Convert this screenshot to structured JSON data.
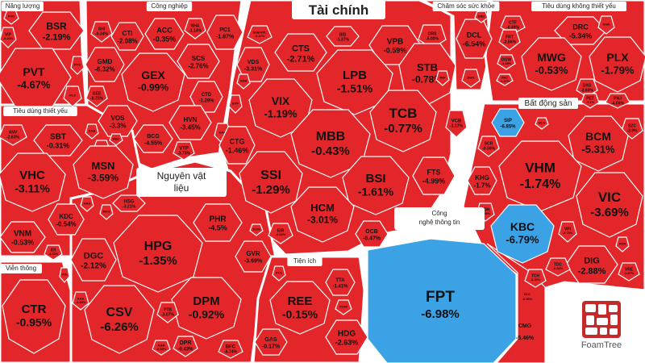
{
  "chart_data": {
    "type": "treemap",
    "title": "",
    "colors": {
      "down": "#e3262a",
      "floor": "#3ba2e6",
      "border": "#ffffff"
    },
    "groups": [
      {
        "name": "Năng lượng",
        "items": [
          {
            "ticker": "BSR",
            "change": "-2.19%"
          },
          {
            "ticker": "PVT",
            "change": "-4.67%"
          },
          {
            "ticker": "VIP",
            "change": "-0.20%"
          },
          {
            "ticker": "PLX",
            "change": ""
          },
          {
            "ticker": "PVD",
            "change": ""
          },
          {
            "ticker": "PVS",
            "change": ""
          }
        ]
      },
      {
        "name": "Công nghiệp",
        "items": [
          {
            "ticker": "SHI",
            "change": "-0.34%"
          },
          {
            "ticker": "CTI",
            "change": "-2.08%"
          },
          {
            "ticker": "ACC",
            "change": "-0.35%"
          },
          {
            "ticker": "NHA",
            "change": "-1.14%"
          },
          {
            "ticker": "PC1",
            "change": "-1.87%"
          },
          {
            "ticker": "GMD",
            "change": "-6.32%"
          },
          {
            "ticker": "GEX",
            "change": "-0.99%"
          },
          {
            "ticker": "SCS",
            "change": "-2.76%"
          },
          {
            "ticker": "GEE",
            "change": "-0.75%"
          },
          {
            "ticker": "CTD",
            "change": "-1.29%"
          },
          {
            "ticker": "VOS",
            "change": "-3.3%"
          },
          {
            "ticker": "HVN",
            "change": "-3.45%"
          },
          {
            "ticker": "BCG",
            "change": "-4.55%"
          },
          {
            "ticker": "VTP",
            "change": "-3.75%"
          },
          {
            "ticker": "HAH",
            "change": ""
          },
          {
            "ticker": "VSC",
            "change": ""
          }
        ]
      },
      {
        "name": "Tài chính",
        "items": [
          {
            "ticker": "SSB/VPL",
            "change": "-0.47%"
          },
          {
            "ticker": "BID",
            "change": "-1.37%"
          },
          {
            "ticker": "VDS",
            "change": "-3.31%"
          },
          {
            "ticker": "CTS",
            "change": "-2.71%"
          },
          {
            "ticker": "VPB",
            "change": "-0.59%"
          },
          {
            "ticker": "ORS",
            "change": "-5.00%"
          },
          {
            "ticker": "LPB",
            "change": "-1.51%"
          },
          {
            "ticker": "STB",
            "change": "-0.78%"
          },
          {
            "ticker": "VIX",
            "change": "-1.19%"
          },
          {
            "ticker": "EVF",
            "change": ""
          },
          {
            "ticker": "MBB",
            "change": "-0.43%"
          },
          {
            "ticker": "TCB",
            "change": "-0.77%"
          },
          {
            "ticker": "CTG",
            "change": "-1.46%"
          },
          {
            "ticker": "VCB",
            "change": "-1.17%"
          },
          {
            "ticker": "SSI",
            "change": "-1.29%"
          },
          {
            "ticker": "BSI",
            "change": "-1.61%"
          },
          {
            "ticker": "FTS",
            "change": "-4.99%"
          },
          {
            "ticker": "HCM",
            "change": "-3.01%"
          },
          {
            "ticker": "EIB",
            "change": "-0.62%"
          },
          {
            "ticker": "OCB",
            "change": "-0.47%"
          },
          {
            "ticker": "VIB",
            "change": "-1.03%"
          },
          {
            "ticker": "HDB",
            "change": ""
          }
        ]
      },
      {
        "name": "Chăm sóc sức khỏe",
        "items": [
          {
            "ticker": "DCL",
            "change": "-6.54%"
          },
          {
            "ticker": "DHG",
            "change": ""
          },
          {
            "ticker": "IMP",
            "change": ""
          },
          {
            "ticker": "DBD",
            "change": ""
          }
        ]
      },
      {
        "name": "Tiêu dùng không thiết yếu",
        "items": [
          {
            "ticker": "CTF",
            "change": "-0.49%"
          },
          {
            "ticker": "DRC",
            "change": "-5.34%"
          },
          {
            "ticker": "FRT",
            "change": "-2.86%"
          },
          {
            "ticker": "MWG",
            "change": "-0.53%"
          },
          {
            "ticker": "PLX",
            "change": "-1.79%"
          },
          {
            "ticker": "SGN",
            "change": ""
          },
          {
            "ticker": "DGW",
            "change": "-1.49%"
          },
          {
            "ticker": "DXG",
            "change": "-3.60%"
          },
          {
            "ticker": "PET",
            "change": "-3.1%"
          },
          {
            "ticker": "PNJ",
            "change": "-4.06%"
          },
          {
            "ticker": "PAC",
            "change": "-1.47%"
          }
        ]
      },
      {
        "name": "Tiêu dùng thiết yếu",
        "items": [
          {
            "ticker": "ANV",
            "change": "-2.63%"
          },
          {
            "ticker": "SBT",
            "change": "-0.31%"
          },
          {
            "ticker": "VHC",
            "change": "-3.11%"
          },
          {
            "ticker": "MSN",
            "change": "-3.59%"
          },
          {
            "ticker": "KDC",
            "change": "-0.54%"
          },
          {
            "ticker": "VNM",
            "change": "-0.53%"
          },
          {
            "ticker": "IDI",
            "change": "-3.33%"
          },
          {
            "ticker": "SAB",
            "change": ""
          },
          {
            "ticker": "DBC",
            "change": ""
          },
          {
            "ticker": "HAG",
            "change": ""
          }
        ]
      },
      {
        "name": "Nguyên vật liệu",
        "items": [
          {
            "ticker": "HSG",
            "change": "-3.21%"
          },
          {
            "ticker": "PHR",
            "change": "-4.5%"
          },
          {
            "ticker": "HPG",
            "change": "-1.35%"
          },
          {
            "ticker": "DGC",
            "change": "-2.12%"
          },
          {
            "ticker": "GVR",
            "change": "-3.69%"
          },
          {
            "ticker": "CSV",
            "change": "-6.26%"
          },
          {
            "ticker": "DPM",
            "change": "-0.92%"
          },
          {
            "ticker": "PTB",
            "change": "-3.07%"
          },
          {
            "ticker": "DPR",
            "change": "-0.43%"
          },
          {
            "ticker": "BFC",
            "change": "-6.74%"
          },
          {
            "ticker": "KSB",
            "change": "-6.60%"
          },
          {
            "ticker": "AAA",
            "change": "-4.83%"
          },
          {
            "ticker": "NKG",
            "change": ""
          },
          {
            "ticker": "DCM",
            "change": ""
          }
        ]
      },
      {
        "name": "Viễn thông",
        "items": [
          {
            "ticker": "CTR",
            "change": "-0.95%"
          },
          {
            "ticker": "VGI",
            "change": ""
          }
        ]
      },
      {
        "name": "Tiện ích",
        "items": [
          {
            "ticker": "TTA",
            "change": "-1.41%"
          },
          {
            "ticker": "REE",
            "change": "-0.15%"
          },
          {
            "ticker": "GAS",
            "change": "-0.17%"
          },
          {
            "ticker": "HDG",
            "change": "-2.63%"
          },
          {
            "ticker": "POW",
            "change": ""
          },
          {
            "ticker": "PC1",
            "change": ""
          }
        ]
      },
      {
        "name": "Bất động sản",
        "items": [
          {
            "ticker": "SIP",
            "change": "-6.85%"
          },
          {
            "ticker": "SZC",
            "change": "-3.9%"
          },
          {
            "ticker": "SCR",
            "change": "-0.36%"
          },
          {
            "ticker": "BCM",
            "change": "-5.31%"
          },
          {
            "ticker": "VHM",
            "change": "-1.74%"
          },
          {
            "ticker": "KHG",
            "change": "-1.7%"
          },
          {
            "ticker": "KDH",
            "change": "-2.49%"
          },
          {
            "ticker": "VIC",
            "change": "-3.69%"
          },
          {
            "ticker": "KBC",
            "change": "-6.79%"
          },
          {
            "ticker": "VPI",
            "change": "-2.75%"
          },
          {
            "ticker": "TCH",
            "change": "-3.33%"
          },
          {
            "ticker": "DIG",
            "change": "-2.88%"
          },
          {
            "ticker": "TDC",
            "change": "-6.94%"
          },
          {
            "ticker": "VRE",
            "change": "-1.87%"
          },
          {
            "ticker": "NLG",
            "change": ""
          },
          {
            "ticker": "PDR",
            "change": ""
          }
        ]
      },
      {
        "name": "Công nghệ thông tin",
        "items": [
          {
            "ticker": "FPT",
            "change": "-6.98%"
          },
          {
            "ticker": "CMG",
            "change": "-5.46%"
          },
          {
            "ticker": "ELC",
            "change": "-6.95%"
          }
        ]
      }
    ]
  },
  "logo": {
    "brand": "FoamTree"
  }
}
